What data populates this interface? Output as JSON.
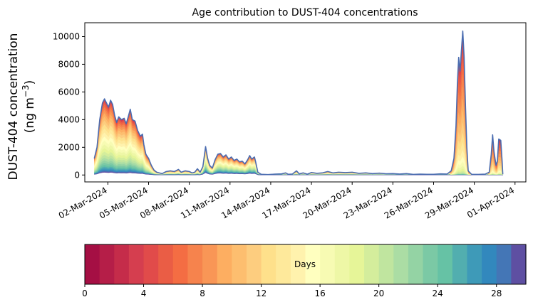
{
  "chart_data": {
    "type": "area",
    "title": "Age contribution to DUST-404 concentrations",
    "ylabel_line1": "DUST-404 concentration",
    "ylabel_line2": "(ng m",
    "ylabel_unit_sup": "−3",
    "ylabel_close": ")",
    "xlabel": "",
    "ylim": [
      -500,
      11000
    ],
    "yticks": [
      0,
      2000,
      4000,
      6000,
      8000,
      10000
    ],
    "x_range_days": [
      -0.7,
      31.8
    ],
    "xtick_days": [
      1,
      4,
      7,
      10,
      13,
      16,
      19,
      22,
      25,
      28,
      31
    ],
    "xtick_labels": [
      "02-Mar-2024",
      "05-Mar-2024",
      "08-Mar-2024",
      "11-Mar-2024",
      "14-Mar-2024",
      "17-Mar-2024",
      "20-Mar-2024",
      "23-Mar-2024",
      "26-Mar-2024",
      "29-Mar-2024",
      "01-Apr-2024"
    ],
    "x_note": "x values are days since 01-Mar-2024",
    "total_series": {
      "name": "Total",
      "color": "#4a6cb0",
      "points": [
        [
          0.0,
          1200
        ],
        [
          0.2,
          2000
        ],
        [
          0.4,
          4000
        ],
        [
          0.6,
          5200
        ],
        [
          0.75,
          5500
        ],
        [
          0.9,
          5200
        ],
        [
          1.05,
          4900
        ],
        [
          1.2,
          5400
        ],
        [
          1.35,
          5100
        ],
        [
          1.5,
          4300
        ],
        [
          1.65,
          3800
        ],
        [
          1.8,
          4200
        ],
        [
          2.0,
          4000
        ],
        [
          2.2,
          4100
        ],
        [
          2.35,
          3700
        ],
        [
          2.5,
          4200
        ],
        [
          2.65,
          4750
        ],
        [
          2.8,
          4000
        ],
        [
          3.0,
          3900
        ],
        [
          3.2,
          3200
        ],
        [
          3.4,
          2800
        ],
        [
          3.55,
          2950
        ],
        [
          3.65,
          2200
        ],
        [
          3.8,
          1500
        ],
        [
          4.0,
          1200
        ],
        [
          4.2,
          700
        ],
        [
          4.4,
          350
        ],
        [
          4.6,
          200
        ],
        [
          4.8,
          150
        ],
        [
          5.0,
          100
        ],
        [
          5.3,
          250
        ],
        [
          5.6,
          300
        ],
        [
          5.9,
          250
        ],
        [
          6.2,
          400
        ],
        [
          6.4,
          200
        ],
        [
          6.7,
          300
        ],
        [
          7.0,
          250
        ],
        [
          7.2,
          150
        ],
        [
          7.4,
          200
        ],
        [
          7.6,
          450
        ],
        [
          7.8,
          200
        ],
        [
          8.0,
          600
        ],
        [
          8.2,
          2050
        ],
        [
          8.35,
          1200
        ],
        [
          8.5,
          700
        ],
        [
          8.7,
          500
        ],
        [
          8.9,
          1100
        ],
        [
          9.1,
          1500
        ],
        [
          9.3,
          1550
        ],
        [
          9.5,
          1300
        ],
        [
          9.7,
          1450
        ],
        [
          9.9,
          1150
        ],
        [
          10.1,
          1300
        ],
        [
          10.3,
          1050
        ],
        [
          10.5,
          1150
        ],
        [
          10.7,
          950
        ],
        [
          10.9,
          1000
        ],
        [
          11.1,
          800
        ],
        [
          11.3,
          1100
        ],
        [
          11.45,
          1400
        ],
        [
          11.6,
          1150
        ],
        [
          11.8,
          1300
        ],
        [
          11.9,
          900
        ],
        [
          12.05,
          200
        ],
        [
          12.3,
          50
        ],
        [
          12.8,
          30
        ],
        [
          13.3,
          60
        ],
        [
          13.8,
          80
        ],
        [
          14.1,
          150
        ],
        [
          14.3,
          50
        ],
        [
          14.6,
          70
        ],
        [
          14.9,
          300
        ],
        [
          15.1,
          80
        ],
        [
          15.4,
          150
        ],
        [
          15.7,
          60
        ],
        [
          16.0,
          180
        ],
        [
          16.4,
          120
        ],
        [
          16.8,
          150
        ],
        [
          17.2,
          250
        ],
        [
          17.6,
          150
        ],
        [
          18.0,
          200
        ],
        [
          18.5,
          170
        ],
        [
          19.0,
          200
        ],
        [
          19.5,
          120
        ],
        [
          20.0,
          150
        ],
        [
          20.5,
          100
        ],
        [
          21.0,
          130
        ],
        [
          21.5,
          90
        ],
        [
          22.0,
          100
        ],
        [
          22.5,
          70
        ],
        [
          23.0,
          100
        ],
        [
          23.5,
          40
        ],
        [
          24.0,
          60
        ],
        [
          24.5,
          50
        ],
        [
          25.0,
          50
        ],
        [
          25.5,
          80
        ],
        [
          26.0,
          70
        ],
        [
          26.3,
          300
        ],
        [
          26.5,
          1200
        ],
        [
          26.65,
          3500
        ],
        [
          26.75,
          6500
        ],
        [
          26.85,
          8500
        ],
        [
          26.95,
          7500
        ],
        [
          27.05,
          9000
        ],
        [
          27.15,
          10400
        ],
        [
          27.25,
          8500
        ],
        [
          27.35,
          5000
        ],
        [
          27.45,
          2000
        ],
        [
          27.55,
          300
        ],
        [
          27.8,
          50
        ],
        [
          28.3,
          40
        ],
        [
          28.8,
          60
        ],
        [
          29.1,
          200
        ],
        [
          29.25,
          1500
        ],
        [
          29.35,
          2900
        ],
        [
          29.45,
          1700
        ],
        [
          29.6,
          700
        ],
        [
          29.7,
          1000
        ],
        [
          29.8,
          2600
        ],
        [
          29.95,
          2500
        ],
        [
          30.05,
          1000
        ],
        [
          30.1,
          50
        ]
      ]
    },
    "age_bands": {
      "min_days": 0,
      "max_days": 30,
      "description": "stacked contributions by air-mass age, colored with the Days colorbar"
    },
    "colorbar": {
      "label": "Days",
      "min": 0,
      "max": 30,
      "n_colors": 30,
      "ticks": [
        0,
        4,
        8,
        12,
        16,
        20,
        24,
        28
      ],
      "colors": [
        "#a50f44",
        "#b51e48",
        "#c52c4a",
        "#d53e4f",
        "#e14b4a",
        "#ea5d45",
        "#f46d43",
        "#f6834d",
        "#f99656",
        "#fdae61",
        "#fdbe6f",
        "#fdcd7f",
        "#fee08b",
        "#fee99b",
        "#fff2ad",
        "#ffffbf",
        "#f7fbb3",
        "#eef7a6",
        "#e6f598",
        "#d4ed9c",
        "#c0e59f",
        "#abdda4",
        "#94d3a4",
        "#7bc9a5",
        "#66c2a5",
        "#52aeaf",
        "#3e9ab8",
        "#3288bd",
        "#4476b6",
        "#5e4fa2"
      ]
    }
  }
}
